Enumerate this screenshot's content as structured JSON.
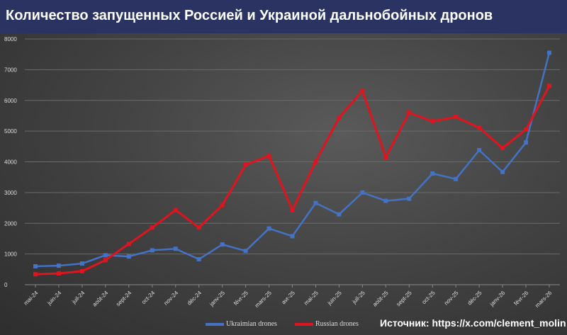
{
  "chart_data": {
    "type": "line",
    "title": "Количество запущенных Россией и Украиной дальнобойных дронов",
    "categories": [
      "mai-24",
      "juin-24",
      "juil-24",
      "août-24",
      "sept-24",
      "oct-24",
      "nov-24",
      "déc-24",
      "janv-25",
      "févr-25",
      "mars-25",
      "avr-25",
      "mai-25",
      "juin-25",
      "juil-25",
      "août-25",
      "sept-25",
      "oct-25",
      "nov-25",
      "déc-25",
      "janv-26",
      "févr-26",
      "mars-26"
    ],
    "ylim": [
      0,
      8000
    ],
    "yticks": [
      0,
      1000,
      2000,
      3000,
      4000,
      5000,
      6000,
      7000,
      8000
    ],
    "grid": true,
    "legend": "bottom",
    "series": [
      {
        "name": "Ukrainian drones",
        "color": "#4472c4",
        "values": [
          600,
          620,
          690,
          960,
          920,
          1120,
          1170,
          830,
          1310,
          1100,
          1830,
          1580,
          2660,
          2290,
          3000,
          2730,
          2800,
          3620,
          3440,
          4380,
          3670,
          4630,
          7550
        ]
      },
      {
        "name": "Russian drones",
        "color": "#e0141e",
        "values": [
          340,
          370,
          440,
          800,
          1330,
          1860,
          2430,
          1860,
          2590,
          3900,
          4200,
          2430,
          4010,
          5440,
          6310,
          4150,
          5600,
          5320,
          5460,
          5110,
          4450,
          5050,
          6470
        ]
      }
    ],
    "legend_labels": [
      "Ukraimian drones",
      "Russian drones"
    ]
  },
  "source": "Источник: https://x.com/clement_molin"
}
